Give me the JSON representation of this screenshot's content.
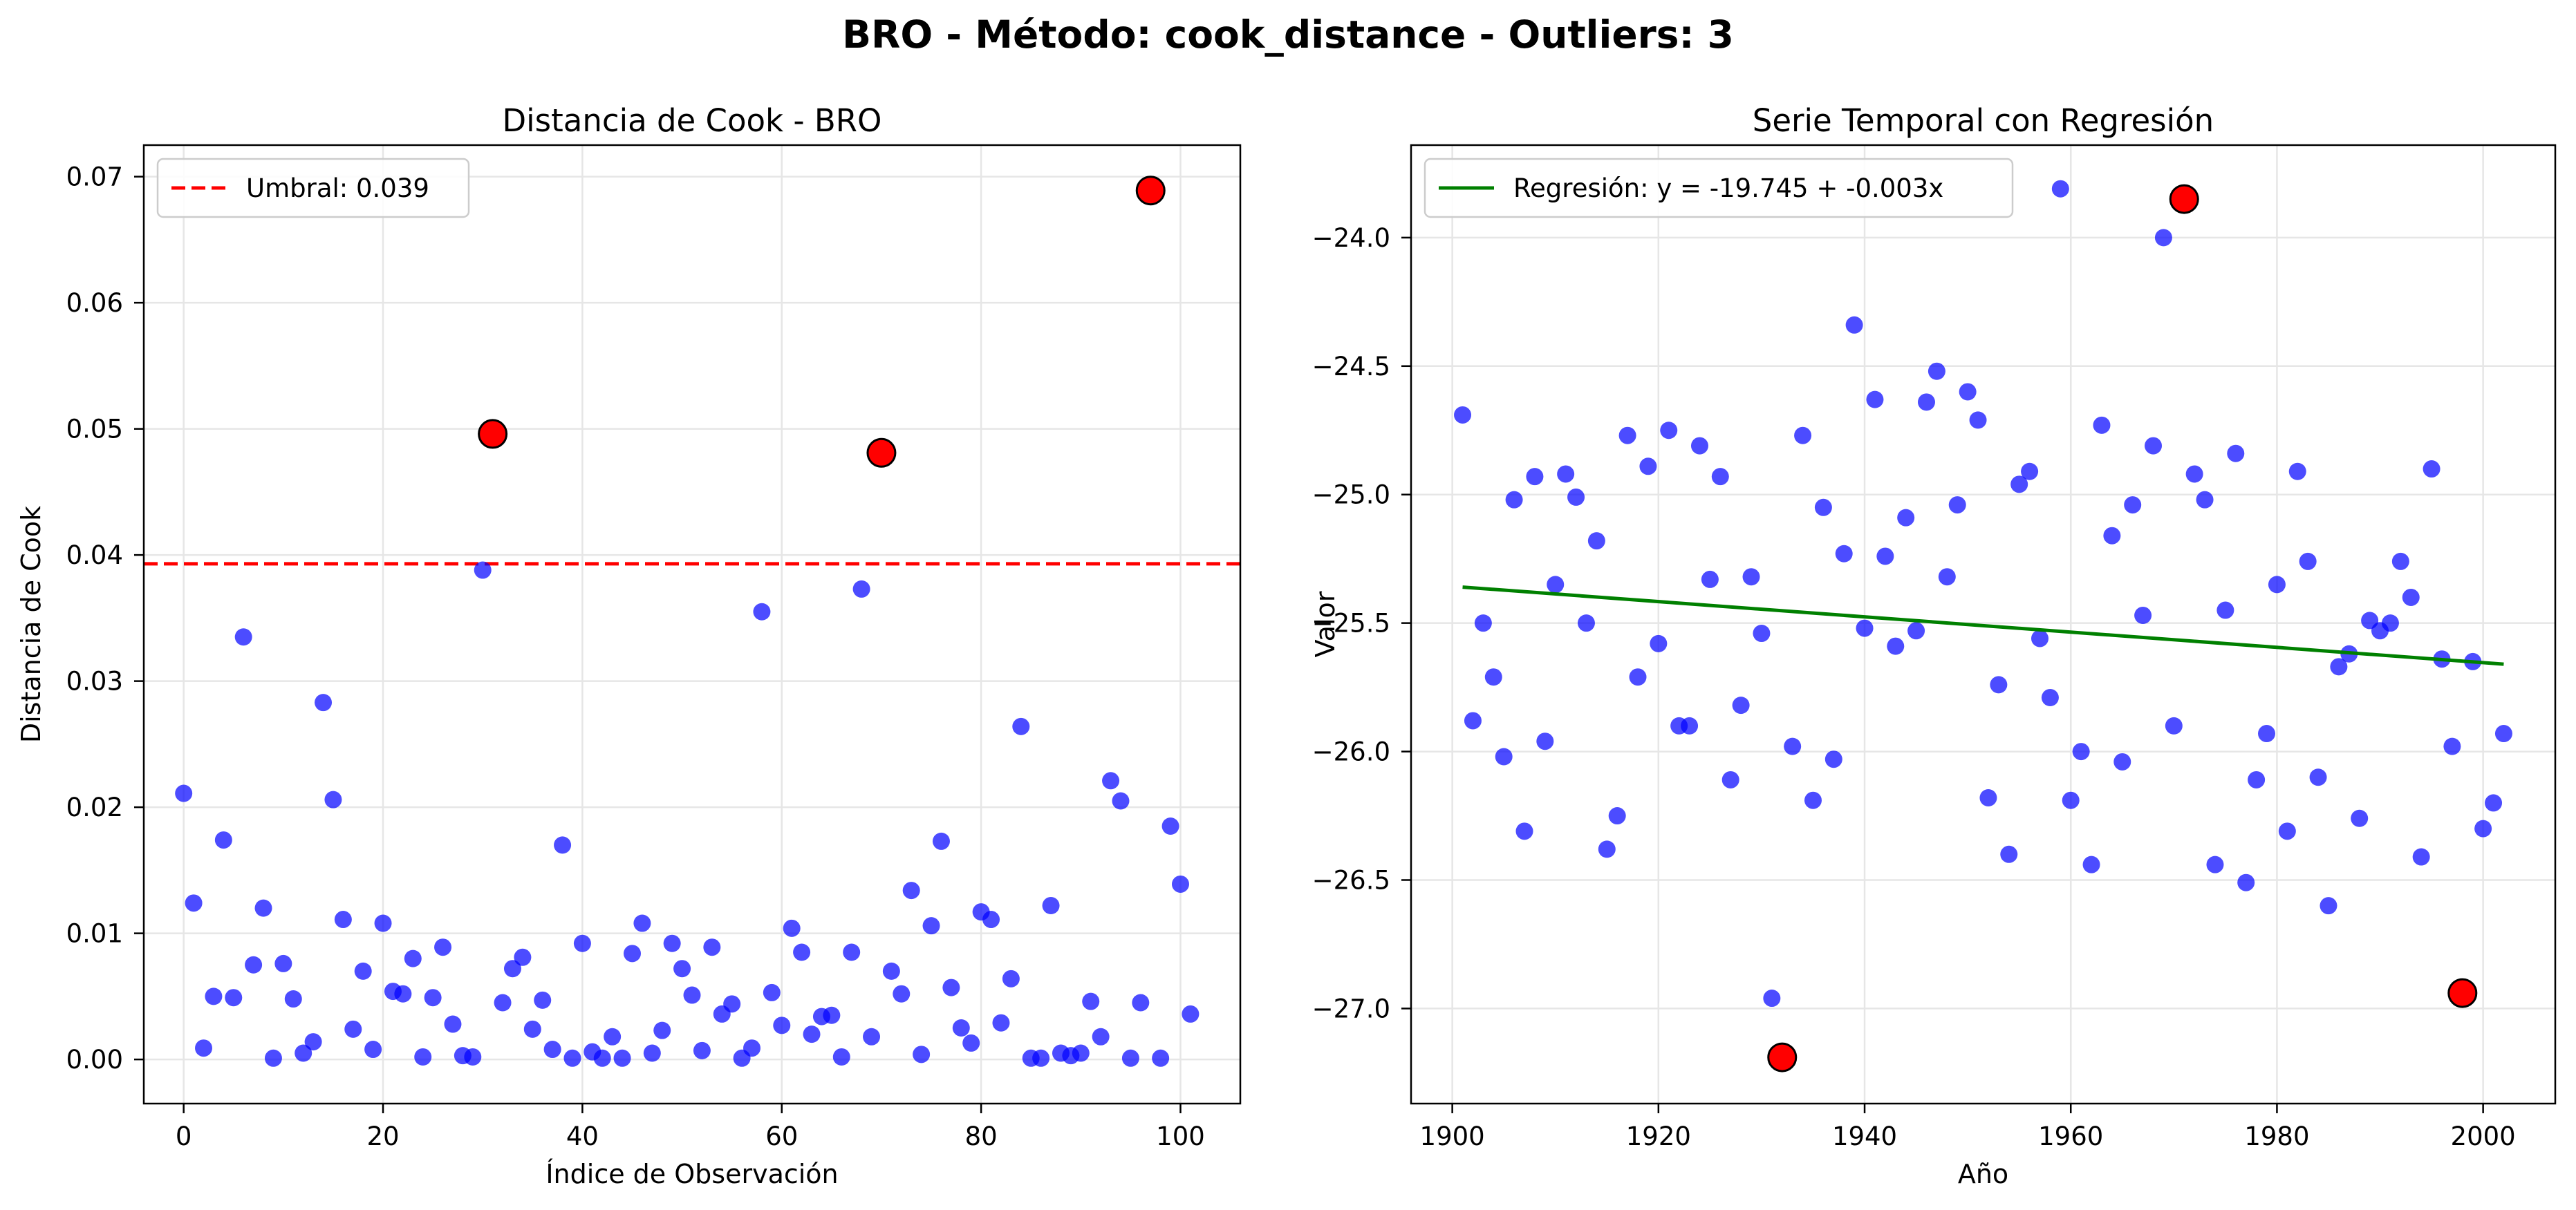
{
  "figure": {
    "suptitle": "BRO - Método: cook_distance - Outliers: 3"
  },
  "chart_data": [
    {
      "type": "scatter",
      "title": "Distancia de Cook - BRO",
      "xlabel": "Índice de Observación",
      "ylabel": "Distancia de Cook",
      "xlim": [
        -4,
        106
      ],
      "ylim": [
        -0.0035,
        0.0725
      ],
      "xticks": [
        0,
        20,
        40,
        60,
        80,
        100
      ],
      "xtick_labels": [
        "0",
        "20",
        "40",
        "60",
        "80",
        "100"
      ],
      "yticks": [
        0.0,
        0.01,
        0.02,
        0.03,
        0.04,
        0.05,
        0.06,
        0.07
      ],
      "ytick_labels": [
        "0.00",
        "0.01",
        "0.02",
        "0.03",
        "0.04",
        "0.05",
        "0.06",
        "0.07"
      ],
      "grid": true,
      "legend_position": "upper-left",
      "colors": {
        "points": "#0000ff",
        "outliers": "#ff0000",
        "threshold": "#ff0000"
      },
      "threshold": {
        "label": "Umbral: 0.039",
        "value": 0.0393
      },
      "series": [
        {
          "x": [
            0,
            1,
            2,
            3,
            4,
            5,
            6,
            7,
            8,
            9,
            10,
            11,
            12,
            13,
            14,
            15,
            16,
            17,
            18,
            19,
            20,
            21,
            22,
            23,
            24,
            25,
            26,
            27,
            28,
            29,
            30,
            32,
            33,
            34,
            35,
            36,
            37,
            38,
            39,
            40,
            41,
            42,
            43,
            44,
            45,
            46,
            47,
            48,
            49,
            50,
            51,
            52,
            53,
            54,
            55,
            56,
            57,
            58,
            59,
            60,
            61,
            62,
            63,
            64,
            65,
            66,
            67,
            68,
            69,
            71,
            72,
            73,
            74,
            75,
            76,
            77,
            78,
            79,
            80,
            81,
            82,
            83,
            84,
            85,
            86,
            87,
            88,
            89,
            90,
            91,
            92,
            93,
            94,
            95,
            96,
            98,
            99,
            100,
            101
          ],
          "y": [
            0.0211,
            0.0124,
            0.0009,
            0.005,
            0.0174,
            0.0049,
            0.0335,
            0.0075,
            0.012,
            0.0001,
            0.0076,
            0.0048,
            0.0005,
            0.0014,
            0.0283,
            0.0206,
            0.0111,
            0.0024,
            0.007,
            0.0008,
            0.0108,
            0.0054,
            0.0052,
            0.008,
            0.0002,
            0.0049,
            0.0089,
            0.0028,
            0.0003,
            0.0002,
            0.0388,
            0.0045,
            0.0072,
            0.0081,
            0.0024,
            0.0047,
            0.0008,
            0.017,
            0.0001,
            0.0092,
            0.0006,
            0.0001,
            0.0018,
            0.0001,
            0.0084,
            0.0108,
            0.0005,
            0.0023,
            0.0092,
            0.0072,
            0.0051,
            0.0007,
            0.0089,
            0.0036,
            0.0044,
            0.0001,
            0.0009,
            0.0355,
            0.0053,
            0.0027,
            0.0104,
            0.0085,
            0.002,
            0.0034,
            0.0035,
            0.0002,
            0.0085,
            0.0373,
            0.0018,
            0.007,
            0.0052,
            0.0134,
            0.0004,
            0.0106,
            0.0173,
            0.0057,
            0.0025,
            0.0013,
            0.0117,
            0.0111,
            0.0029,
            0.0064,
            0.0264,
            0.0001,
            0.0001,
            0.0122,
            0.0005,
            0.0003,
            0.0005,
            0.0046,
            0.0018,
            0.0221,
            0.0205,
            0.0001,
            0.0045,
            0.0001,
            0.0185,
            0.0139,
            0.0036
          ]
        },
        {
          "x": [
            31,
            70,
            97
          ],
          "y": [
            0.0496,
            0.0481,
            0.0689
          ]
        }
      ]
    },
    {
      "type": "scatter",
      "title": "Serie Temporal con Regresión",
      "xlabel": "Año",
      "ylabel": "Valor",
      "xlim": [
        1896,
        2007
      ],
      "ylim": [
        -27.37,
        -23.64
      ],
      "xticks": [
        1900,
        1920,
        1940,
        1960,
        1980,
        2000
      ],
      "xtick_labels": [
        "1900",
        "1920",
        "1940",
        "1960",
        "1980",
        "2000"
      ],
      "yticks": [
        -24.0,
        -24.5,
        -25.0,
        -25.5,
        -26.0,
        -26.5,
        -27.0
      ],
      "ytick_labels": [
        "−24.0",
        "−24.5",
        "−25.0",
        "−25.5",
        "−26.0",
        "−26.5",
        "−27.0"
      ],
      "grid": true,
      "legend_position": "upper-left",
      "colors": {
        "points": "#0000ff",
        "outliers": "#ff0000",
        "regression": "#008000"
      },
      "regression": {
        "label": "Regresión: y = -19.745 + -0.003x",
        "x": [
          1901,
          2002
        ],
        "y": [
          -25.36,
          -25.66
        ]
      },
      "series": [
        {
          "x": [
            1901,
            1902,
            1903,
            1904,
            1905,
            1906,
            1907,
            1908,
            1909,
            1910,
            1911,
            1912,
            1913,
            1914,
            1915,
            1916,
            1917,
            1918,
            1919,
            1920,
            1921,
            1922,
            1923,
            1924,
            1925,
            1926,
            1927,
            1928,
            1929,
            1930,
            1931,
            1933,
            1934,
            1935,
            1936,
            1937,
            1938,
            1939,
            1940,
            1941,
            1942,
            1943,
            1944,
            1945,
            1946,
            1947,
            1948,
            1949,
            1950,
            1951,
            1952,
            1953,
            1954,
            1955,
            1956,
            1957,
            1958,
            1959,
            1960,
            1961,
            1962,
            1963,
            1964,
            1965,
            1966,
            1967,
            1968,
            1969,
            1970,
            1972,
            1973,
            1974,
            1975,
            1976,
            1977,
            1978,
            1979,
            1980,
            1981,
            1982,
            1983,
            1984,
            1985,
            1986,
            1987,
            1988,
            1989,
            1990,
            1991,
            1992,
            1993,
            1994,
            1995,
            1996,
            1997,
            1999,
            2000,
            2001,
            2002
          ],
          "y": [
            -24.69,
            -25.88,
            -25.5,
            -25.71,
            -26.02,
            -25.02,
            -26.31,
            -24.93,
            -25.96,
            -25.35,
            -24.92,
            -25.01,
            -25.5,
            -25.18,
            -26.38,
            -26.25,
            -24.77,
            -25.71,
            -24.89,
            -25.58,
            -24.75,
            -25.9,
            -25.9,
            -24.81,
            -25.33,
            -24.93,
            -26.11,
            -25.82,
            -25.32,
            -25.54,
            -26.96,
            -25.98,
            -24.77,
            -26.19,
            -25.05,
            -26.03,
            -25.23,
            -24.34,
            -25.52,
            -24.63,
            -25.24,
            -25.59,
            -25.09,
            -25.53,
            -24.64,
            -24.52,
            -25.32,
            -25.04,
            -24.6,
            -24.71,
            -26.18,
            -25.74,
            -26.4,
            -24.96,
            -24.91,
            -25.56,
            -25.79,
            -23.81,
            -26.19,
            -26.0,
            -26.44,
            -24.73,
            -25.16,
            -26.04,
            -25.04,
            -25.47,
            -24.81,
            -24.0,
            -25.9,
            -24.92,
            -25.02,
            -26.44,
            -25.45,
            -24.84,
            -26.51,
            -26.11,
            -25.93,
            -25.35,
            -26.31,
            -24.91,
            -25.26,
            -26.1,
            -26.6,
            -25.67,
            -25.62,
            -26.26,
            -25.49,
            -25.53,
            -25.5,
            -25.26,
            -25.4,
            -26.41,
            -24.9,
            -25.64,
            -25.98,
            -25.65,
            -26.3,
            -26.2,
            -25.93
          ]
        },
        {
          "x": [
            1932,
            1971,
            1998
          ],
          "y": [
            -27.19,
            -23.85,
            -26.94
          ]
        }
      ]
    }
  ]
}
